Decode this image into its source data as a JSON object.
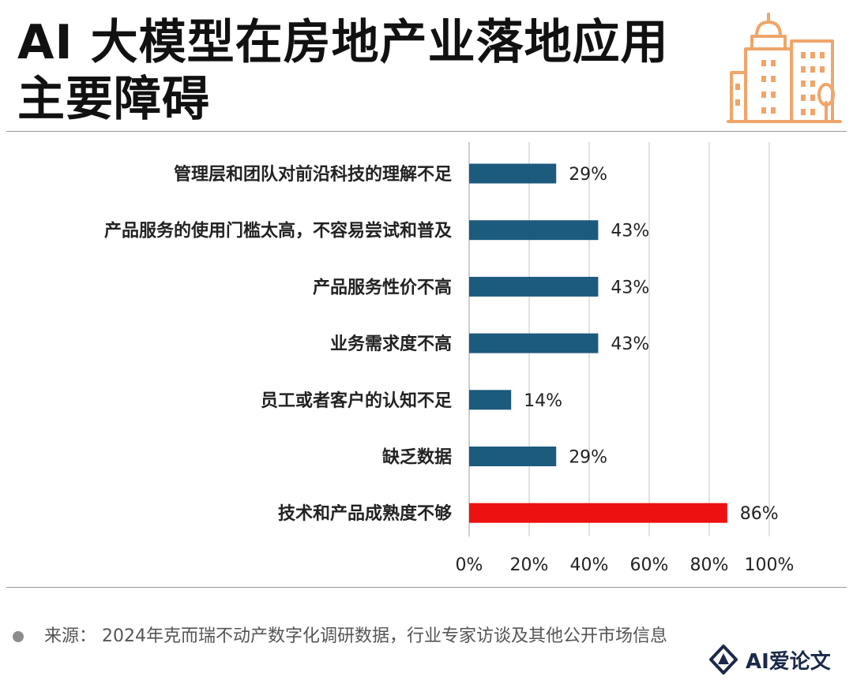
{
  "title": {
    "line1": "AI 大模型在房地产业落地应用",
    "line2": "主要障碍"
  },
  "chart_data": {
    "type": "bar",
    "orientation": "horizontal",
    "categories": [
      "管理层和团队对前沿科技的理解不足",
      "产品服务的使用门槛太高，不容易尝试和普及",
      "产品服务性价不高",
      "业务需求度不高",
      "员工或者客户的认知不足",
      "缺乏数据",
      "技术和产品成熟度不够"
    ],
    "values": [
      29,
      43,
      43,
      43,
      14,
      29,
      86
    ],
    "value_labels": [
      "29%",
      "43%",
      "43%",
      "43%",
      "14%",
      "29%",
      "86%"
    ],
    "highlight_index": 6,
    "xlim": [
      0,
      100
    ],
    "x_ticks": [
      "0%",
      "20%",
      "40%",
      "60%",
      "80%",
      "100%"
    ],
    "grid": "vertical",
    "colors": {
      "bar": "#1c5a7e",
      "highlight": "#ee1111",
      "grid": "#d9d9d9"
    }
  },
  "footer": {
    "source": "来源：  2024年克而瑞不动产数字化调研数据，行业专家访谈及其他公开市场信息"
  },
  "badge": {
    "text": "AI爱论文",
    "icon": "ai-logo-icon"
  },
  "logo_icon": "city-buildings-icon",
  "colors": {
    "logo": "#f0a56a",
    "title": "#111111"
  }
}
